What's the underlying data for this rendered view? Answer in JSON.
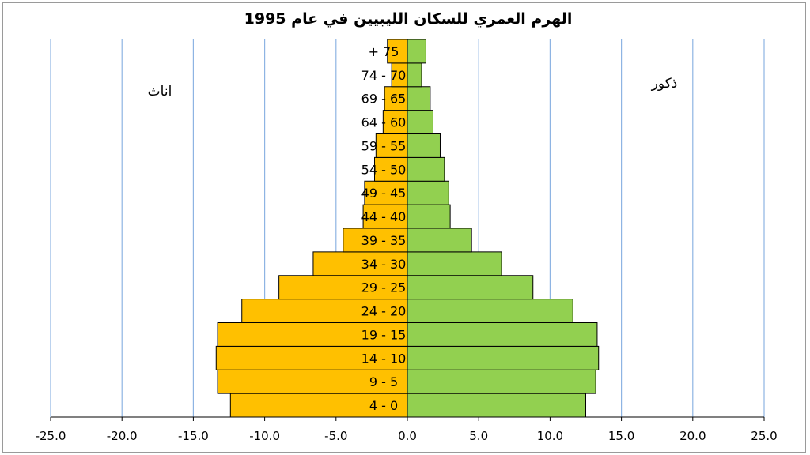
{
  "chart_data": {
    "type": "bar",
    "title": "الهرم العمري للسكان الليبيين في عام 1995",
    "categories": [
      "4 - 0",
      "9 - 5",
      "14 - 10",
      "19 - 15",
      "24 - 20",
      "29 - 25",
      "34 - 30",
      "39 - 35",
      "44 - 40",
      "49 - 45",
      "54 - 50",
      "59 - 55",
      "64 - 60",
      "69 - 65",
      "74 - 70",
      "+ 75"
    ],
    "series": [
      {
        "name": "اناث",
        "values": [
          -12.4,
          -13.3,
          -13.4,
          -13.3,
          -11.6,
          -9.0,
          -6.6,
          -4.5,
          -3.1,
          -3.0,
          -2.3,
          -2.2,
          -1.7,
          -1.6,
          -1.1,
          -1.4
        ],
        "color": "#FFC000"
      },
      {
        "name": "ذكور",
        "values": [
          12.5,
          13.2,
          13.4,
          13.3,
          11.6,
          8.8,
          6.6,
          4.5,
          3.0,
          2.9,
          2.6,
          2.3,
          1.8,
          1.6,
          1.0,
          1.3
        ],
        "color": "#92D050"
      }
    ],
    "xlim": [
      -25,
      25
    ],
    "xticks": [
      "-25.0",
      "-20.0",
      "-15.0",
      "-10.0",
      "-5.0",
      "0.0",
      "5.0",
      "10.0",
      "15.0",
      "20.0",
      "25.0"
    ],
    "grid": true,
    "gridline_color": "#8EB4E3",
    "bar_outline": "#000000"
  }
}
